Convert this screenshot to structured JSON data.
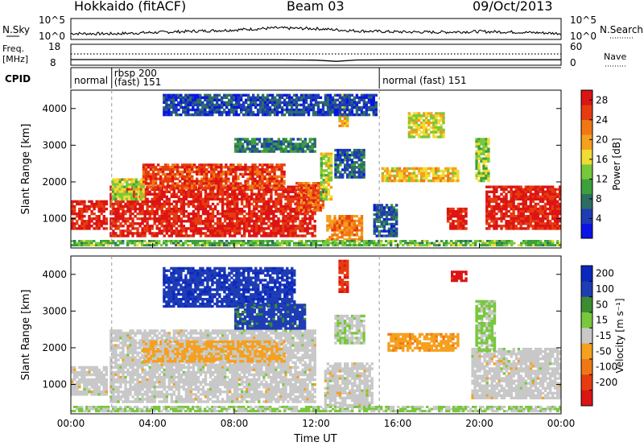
{
  "header": {
    "radar": "Hokkaido (fitACF)",
    "beam": "Beam 03",
    "date": "09/Oct/2013"
  },
  "status_panel": {
    "nsky_label": "N.Sky",
    "nsky_ticks": [
      "10^5",
      "10^0"
    ],
    "nsearch_label": "N.Search",
    "nsearch_ticks": [
      "10^5",
      "10^0"
    ],
    "freq_label": "Freq.",
    "freq_unit": "[MHz]",
    "freq_ticks": [
      "18",
      "8"
    ],
    "nave_label": "Nave",
    "nave_ticks": [
      "60",
      "0"
    ],
    "cpid_label": "CPID",
    "cpid_segments": [
      {
        "label": "normal",
        "sublabel": "",
        "start_h": 0,
        "end_h": 2.0
      },
      {
        "label": "rbsp 200",
        "sublabel": "(fast) 151",
        "start_h": 2.0,
        "end_h": 15.1
      },
      {
        "label": "normal (fast) 151",
        "sublabel": "",
        "start_h": 15.1,
        "end_h": 24
      }
    ]
  },
  "axes": {
    "y_label": "Slant Range [km]",
    "y_ticks": [
      "1000",
      "2000",
      "3000",
      "4000"
    ],
    "x_label": "Time UT",
    "x_ticks": [
      "00:00",
      "04:00",
      "08:00",
      "12:00",
      "16:00",
      "20:00",
      "00:00"
    ]
  },
  "colorbars": {
    "power": {
      "label": "Power [dB]",
      "ticks": [
        "4",
        "8",
        "12",
        "16",
        "20",
        "24",
        "28"
      ]
    },
    "velocity": {
      "label": "Velocity [m s⁻¹]",
      "ticks": [
        "200",
        "100",
        "50",
        "15",
        "-15",
        "-50",
        "-100",
        "-200"
      ]
    }
  },
  "colors": {
    "power_scale": [
      "#0a14e6",
      "#1e3cb4",
      "#2d6e64",
      "#3ca03c",
      "#78c83c",
      "#f0dc32",
      "#f5a01e",
      "#f07814",
      "#e63c0f",
      "#dc1414",
      "#e6e6e6"
    ],
    "velocity_scale": [
      "#0a28be",
      "#1e3cb4",
      "#3c8c32",
      "#78c83c",
      "#c8c8c8",
      "#f5a01e",
      "#f07814",
      "#e63c0f",
      "#dc1414"
    ]
  },
  "chart_data": [
    {
      "type": "line",
      "title": "N.Sky / N.Search",
      "x": [
        0,
        2,
        4,
        6,
        8,
        10,
        12,
        14,
        16,
        18,
        20,
        22,
        24
      ],
      "series": [
        {
          "name": "N.Sky",
          "values": [
            1.1,
            1.0,
            1.4,
            1.8,
            2.2,
            2.8,
            2.6,
            1.9,
            1.6,
            1.5,
            1.7,
            1.5,
            1.1
          ]
        }
      ],
      "ylim": [
        0,
        5
      ],
      "xlim": [
        0,
        24
      ]
    },
    {
      "type": "line",
      "title": "Freq. / Nave",
      "x": [
        0,
        2,
        4,
        6,
        8,
        10,
        12,
        13,
        14,
        16,
        18,
        20,
        22,
        24
      ],
      "series": [
        {
          "name": "Freq.",
          "values": [
            10.5,
            10.5,
            10.4,
            10.4,
            10.4,
            10.4,
            10.2,
            9.6,
            10.3,
            10.4,
            10.4,
            10.4,
            10.4,
            10.4
          ]
        },
        {
          "name": "Nave",
          "values": [
            22,
            22,
            22,
            22,
            22,
            22,
            22,
            22,
            22,
            22,
            22,
            22,
            22,
            22
          ]
        }
      ],
      "ylim": [
        8,
        18
      ],
      "xlim": [
        0,
        24
      ]
    },
    {
      "type": "heatmap",
      "title": "Power",
      "xlabel": "Time UT",
      "ylabel": "Slant Range [km]",
      "colorbar_label": "Power [dB]",
      "xlim": [
        0,
        24
      ],
      "ylim": [
        200,
        4500
      ],
      "clim": [
        0,
        30
      ],
      "regions": [
        {
          "t": [
            0.0,
            1.8
          ],
          "r": [
            700,
            1500
          ],
          "v": 28
        },
        {
          "t": [
            1.9,
            12.0
          ],
          "r": [
            500,
            1900
          ],
          "v": 28
        },
        {
          "t": [
            3.5,
            10.5
          ],
          "r": [
            1800,
            2500
          ],
          "v": 26
        },
        {
          "t": [
            2.0,
            3.6
          ],
          "r": [
            1500,
            2100
          ],
          "v": 15
        },
        {
          "t": [
            11.0,
            12.4
          ],
          "r": [
            1200,
            2000
          ],
          "v": 24
        },
        {
          "t": [
            12.2,
            12.8
          ],
          "r": [
            1500,
            2800
          ],
          "v": 15
        },
        {
          "t": [
            12.5,
            14.3
          ],
          "r": [
            400,
            1100
          ],
          "v": 22
        },
        {
          "t": [
            13.1,
            13.6
          ],
          "r": [
            3500,
            4400
          ],
          "v": 18
        },
        {
          "t": [
            12.9,
            14.4
          ],
          "r": [
            2100,
            2900
          ],
          "v": 6
        },
        {
          "t": [
            15.2,
            19.0
          ],
          "r": [
            2000,
            2400
          ],
          "v": 18
        },
        {
          "t": [
            18.4,
            19.4
          ],
          "r": [
            700,
            1300
          ],
          "v": 28
        },
        {
          "t": [
            19.8,
            20.5
          ],
          "r": [
            2000,
            3200
          ],
          "v": 14
        },
        {
          "t": [
            20.3,
            24.0
          ],
          "r": [
            700,
            1900
          ],
          "v": 28
        },
        {
          "t": [
            16.5,
            18.3
          ],
          "r": [
            3200,
            3900
          ],
          "v": 16
        },
        {
          "t": [
            0.0,
            24.0
          ],
          "r": [
            250,
            420
          ],
          "v": 12
        },
        {
          "t": [
            4.5,
            15.0
          ],
          "r": [
            3800,
            4400
          ],
          "v": 5
        },
        {
          "t": [
            8.0,
            12.0
          ],
          "r": [
            2800,
            3200
          ],
          "v": 8
        },
        {
          "t": [
            14.8,
            16.0
          ],
          "r": [
            500,
            1400
          ],
          "v": 6
        }
      ]
    },
    {
      "type": "heatmap",
      "title": "Velocity",
      "xlabel": "Time UT",
      "ylabel": "Slant Range [km]",
      "colorbar_label": "Velocity [m s⁻¹]",
      "xlim": [
        0,
        24
      ],
      "ylim": [
        200,
        4500
      ],
      "clim": [
        -250,
        250
      ],
      "regions": [
        {
          "t": [
            0.0,
            1.8
          ],
          "r": [
            700,
            1500
          ],
          "v": 0
        },
        {
          "t": [
            1.9,
            12.0
          ],
          "r": [
            500,
            2500
          ],
          "v": 0
        },
        {
          "t": [
            3.5,
            10.5
          ],
          "r": [
            1600,
            2200
          ],
          "v": -40
        },
        {
          "t": [
            12.4,
            14.8
          ],
          "r": [
            400,
            1600
          ],
          "v": 0
        },
        {
          "t": [
            12.9,
            14.4
          ],
          "r": [
            2100,
            2900
          ],
          "v": 20
        },
        {
          "t": [
            13.1,
            13.6
          ],
          "r": [
            3500,
            4400
          ],
          "v": -180
        },
        {
          "t": [
            15.5,
            19.0
          ],
          "r": [
            1900,
            2400
          ],
          "v": -60
        },
        {
          "t": [
            18.6,
            19.4
          ],
          "r": [
            3800,
            4100
          ],
          "v": -220
        },
        {
          "t": [
            19.6,
            24.0
          ],
          "r": [
            600,
            2000
          ],
          "v": 0
        },
        {
          "t": [
            19.8,
            20.8
          ],
          "r": [
            1900,
            3300
          ],
          "v": 40
        },
        {
          "t": [
            4.5,
            11.0
          ],
          "r": [
            3100,
            4200
          ],
          "v": 180
        },
        {
          "t": [
            0.0,
            24.0
          ],
          "r": [
            250,
            420
          ],
          "v": 30
        },
        {
          "t": [
            8.0,
            11.5
          ],
          "r": [
            2500,
            3200
          ],
          "v": 160
        }
      ]
    }
  ]
}
